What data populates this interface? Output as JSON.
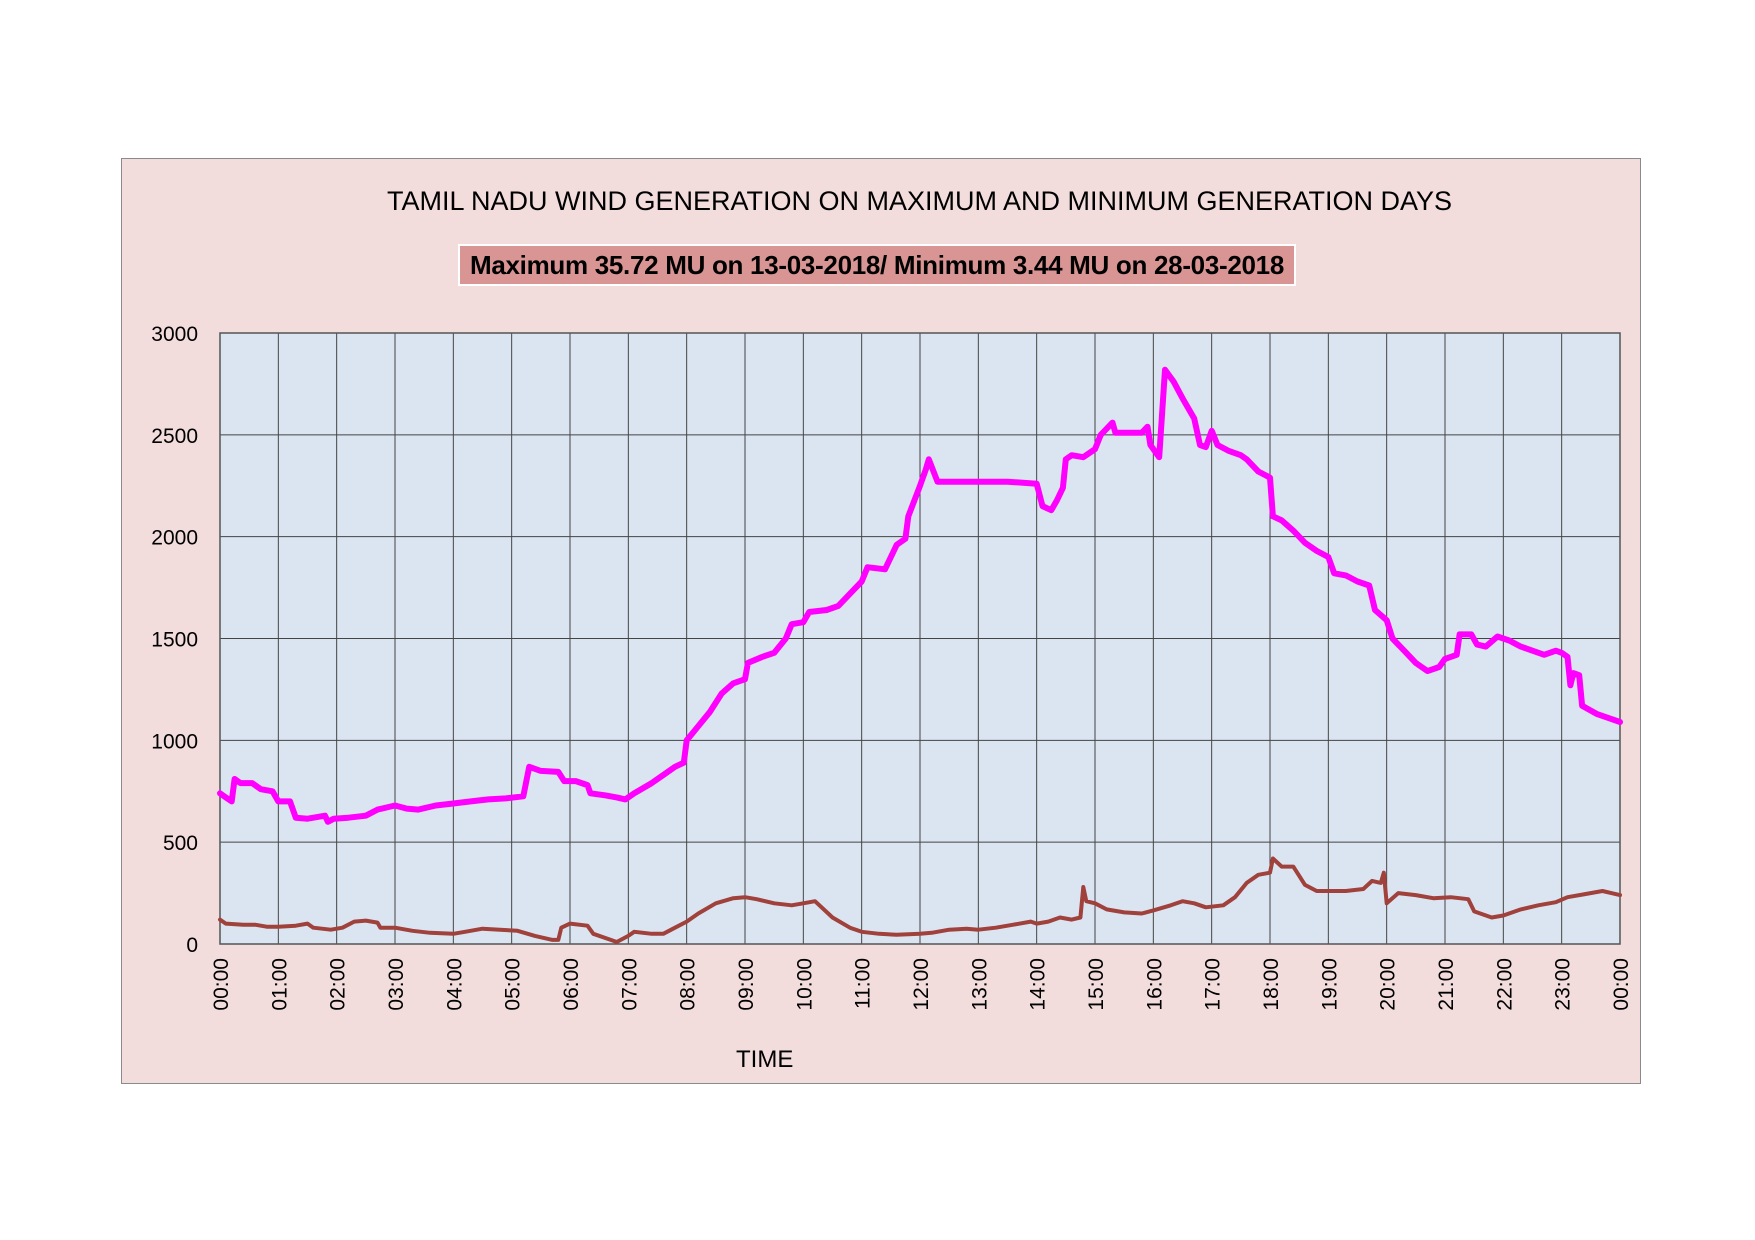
{
  "chart_data": {
    "type": "line",
    "title": "TAMIL NADU WIND GENERATION ON MAXIMUM AND MINIMUM GENERATION DAYS",
    "subtitle": "Maximum 35.72 MU on 13-03-2018/ Minimum 3.44 MU on 28-03-2018",
    "xlabel": "TIME",
    "ylabel": "",
    "ylim": [
      0,
      3000
    ],
    "yticks": [
      "0",
      "500",
      "1000",
      "1500",
      "2000",
      "2500",
      "3000"
    ],
    "x_ticks": [
      "00:00",
      "01:00",
      "02:00",
      "03:00",
      "04:00",
      "05:00",
      "06:00",
      "07:00",
      "08:00",
      "09:00",
      "10:00",
      "11:00",
      "12:00",
      "13:00",
      "14:00",
      "15:00",
      "16:00",
      "17:00",
      "18:00",
      "19:00",
      "20:00",
      "21:00",
      "22:00",
      "23:00",
      "00:00"
    ],
    "grid": true,
    "legend": "none",
    "series": [
      {
        "color": "#ff00ff",
        "points": [
          [
            0,
            740
          ],
          [
            0.1,
            720
          ],
          [
            0.2,
            700
          ],
          [
            0.25,
            810
          ],
          [
            0.35,
            790
          ],
          [
            0.55,
            790
          ],
          [
            0.7,
            760
          ],
          [
            0.9,
            750
          ],
          [
            1.0,
            700
          ],
          [
            1.2,
            700
          ],
          [
            1.3,
            620
          ],
          [
            1.5,
            615
          ],
          [
            1.7,
            625
          ],
          [
            1.8,
            630
          ],
          [
            1.85,
            600
          ],
          [
            1.95,
            615
          ],
          [
            2.2,
            620
          ],
          [
            2.5,
            630
          ],
          [
            2.7,
            660
          ],
          [
            3.0,
            680
          ],
          [
            3.2,
            665
          ],
          [
            3.4,
            660
          ],
          [
            3.7,
            680
          ],
          [
            4.0,
            690
          ],
          [
            4.3,
            700
          ],
          [
            4.6,
            710
          ],
          [
            4.9,
            715
          ],
          [
            5.2,
            725
          ],
          [
            5.3,
            870
          ],
          [
            5.5,
            850
          ],
          [
            5.8,
            845
          ],
          [
            5.9,
            800
          ],
          [
            6.1,
            800
          ],
          [
            6.3,
            780
          ],
          [
            6.35,
            740
          ],
          [
            6.6,
            730
          ],
          [
            6.8,
            720
          ],
          [
            6.95,
            710
          ],
          [
            7.1,
            740
          ],
          [
            7.4,
            790
          ],
          [
            7.6,
            830
          ],
          [
            7.8,
            870
          ],
          [
            7.95,
            890
          ],
          [
            8.0,
            1000
          ],
          [
            8.2,
            1070
          ],
          [
            8.4,
            1140
          ],
          [
            8.6,
            1230
          ],
          [
            8.8,
            1280
          ],
          [
            9.0,
            1300
          ],
          [
            9.05,
            1380
          ],
          [
            9.3,
            1410
          ],
          [
            9.5,
            1430
          ],
          [
            9.7,
            1500
          ],
          [
            9.8,
            1570
          ],
          [
            10.0,
            1580
          ],
          [
            10.1,
            1630
          ],
          [
            10.4,
            1640
          ],
          [
            10.6,
            1660
          ],
          [
            10.8,
            1720
          ],
          [
            11.0,
            1780
          ],
          [
            11.1,
            1850
          ],
          [
            11.4,
            1840
          ],
          [
            11.6,
            1960
          ],
          [
            11.75,
            1990
          ],
          [
            11.8,
            2100
          ],
          [
            12.0,
            2250
          ],
          [
            12.1,
            2330
          ],
          [
            12.15,
            2380
          ],
          [
            12.3,
            2270
          ],
          [
            13.5,
            2270
          ],
          [
            14.0,
            2260
          ],
          [
            14.1,
            2150
          ],
          [
            14.25,
            2130
          ],
          [
            14.35,
            2180
          ],
          [
            14.45,
            2240
          ],
          [
            14.5,
            2380
          ],
          [
            14.6,
            2400
          ],
          [
            14.8,
            2390
          ],
          [
            15.0,
            2430
          ],
          [
            15.1,
            2500
          ],
          [
            15.3,
            2560
          ],
          [
            15.35,
            2510
          ],
          [
            15.8,
            2510
          ],
          [
            15.9,
            2540
          ],
          [
            15.95,
            2450
          ],
          [
            16.1,
            2390
          ],
          [
            16.2,
            2820
          ],
          [
            16.35,
            2760
          ],
          [
            16.5,
            2680
          ],
          [
            16.7,
            2580
          ],
          [
            16.8,
            2450
          ],
          [
            16.9,
            2440
          ],
          [
            17.0,
            2520
          ],
          [
            17.1,
            2450
          ],
          [
            17.3,
            2420
          ],
          [
            17.5,
            2400
          ],
          [
            17.6,
            2380
          ],
          [
            17.8,
            2320
          ],
          [
            18.0,
            2290
          ],
          [
            18.05,
            2100
          ],
          [
            18.2,
            2080
          ],
          [
            18.4,
            2030
          ],
          [
            18.6,
            1970
          ],
          [
            18.8,
            1930
          ],
          [
            19.0,
            1900
          ],
          [
            19.1,
            1820
          ],
          [
            19.3,
            1810
          ],
          [
            19.5,
            1780
          ],
          [
            19.7,
            1760
          ],
          [
            19.8,
            1640
          ],
          [
            20.0,
            1590
          ],
          [
            20.1,
            1500
          ],
          [
            20.3,
            1440
          ],
          [
            20.5,
            1380
          ],
          [
            20.7,
            1340
          ],
          [
            20.9,
            1360
          ],
          [
            21.0,
            1400
          ],
          [
            21.2,
            1420
          ],
          [
            21.25,
            1520
          ],
          [
            21.45,
            1520
          ],
          [
            21.55,
            1470
          ],
          [
            21.7,
            1460
          ],
          [
            21.9,
            1510
          ],
          [
            22.1,
            1490
          ],
          [
            22.3,
            1460
          ],
          [
            22.5,
            1440
          ],
          [
            22.7,
            1420
          ],
          [
            22.9,
            1440
          ],
          [
            23.0,
            1430
          ],
          [
            23.1,
            1410
          ],
          [
            23.15,
            1270
          ],
          [
            23.2,
            1330
          ],
          [
            23.3,
            1320
          ],
          [
            23.35,
            1170
          ],
          [
            23.6,
            1130
          ],
          [
            23.8,
            1110
          ],
          [
            24.0,
            1090
          ]
        ]
      },
      {
        "color": "#a0413c",
        "points": [
          [
            0,
            120
          ],
          [
            0.1,
            100
          ],
          [
            0.4,
            95
          ],
          [
            0.6,
            95
          ],
          [
            0.8,
            85
          ],
          [
            1.0,
            85
          ],
          [
            1.3,
            90
          ],
          [
            1.5,
            100
          ],
          [
            1.6,
            80
          ],
          [
            1.9,
            70
          ],
          [
            2.1,
            80
          ],
          [
            2.3,
            110
          ],
          [
            2.5,
            115
          ],
          [
            2.7,
            105
          ],
          [
            2.75,
            80
          ],
          [
            3.0,
            80
          ],
          [
            3.3,
            65
          ],
          [
            3.6,
            55
          ],
          [
            4.0,
            50
          ],
          [
            4.2,
            60
          ],
          [
            4.5,
            75
          ],
          [
            4.8,
            70
          ],
          [
            5.1,
            65
          ],
          [
            5.4,
            40
          ],
          [
            5.7,
            20
          ],
          [
            5.8,
            20
          ],
          [
            5.85,
            80
          ],
          [
            6.0,
            100
          ],
          [
            6.3,
            90
          ],
          [
            6.4,
            50
          ],
          [
            6.7,
            20
          ],
          [
            6.8,
            10
          ],
          [
            7.0,
            40
          ],
          [
            7.1,
            60
          ],
          [
            7.4,
            50
          ],
          [
            7.6,
            50
          ],
          [
            7.8,
            80
          ],
          [
            8.0,
            110
          ],
          [
            8.2,
            150
          ],
          [
            8.5,
            200
          ],
          [
            8.8,
            225
          ],
          [
            9.0,
            230
          ],
          [
            9.2,
            220
          ],
          [
            9.5,
            200
          ],
          [
            9.8,
            190
          ],
          [
            10.0,
            200
          ],
          [
            10.2,
            210
          ],
          [
            10.5,
            130
          ],
          [
            10.8,
            80
          ],
          [
            11.0,
            60
          ],
          [
            11.3,
            50
          ],
          [
            11.6,
            45
          ],
          [
            12.0,
            50
          ],
          [
            12.2,
            55
          ],
          [
            12.5,
            70
          ],
          [
            12.8,
            75
          ],
          [
            13.0,
            70
          ],
          [
            13.3,
            80
          ],
          [
            13.6,
            95
          ],
          [
            13.9,
            110
          ],
          [
            14.0,
            100
          ],
          [
            14.2,
            110
          ],
          [
            14.4,
            130
          ],
          [
            14.6,
            120
          ],
          [
            14.75,
            130
          ],
          [
            14.8,
            280
          ],
          [
            14.85,
            210
          ],
          [
            15.0,
            200
          ],
          [
            15.2,
            170
          ],
          [
            15.5,
            155
          ],
          [
            15.8,
            150
          ],
          [
            16.0,
            165
          ],
          [
            16.3,
            190
          ],
          [
            16.5,
            210
          ],
          [
            16.7,
            200
          ],
          [
            16.9,
            180
          ],
          [
            17.2,
            190
          ],
          [
            17.4,
            230
          ],
          [
            17.6,
            300
          ],
          [
            17.8,
            340
          ],
          [
            18.0,
            350
          ],
          [
            18.05,
            420
          ],
          [
            18.2,
            380
          ],
          [
            18.4,
            380
          ],
          [
            18.6,
            290
          ],
          [
            18.8,
            260
          ],
          [
            19.0,
            260
          ],
          [
            19.3,
            260
          ],
          [
            19.6,
            270
          ],
          [
            19.75,
            310
          ],
          [
            19.9,
            300
          ],
          [
            19.95,
            350
          ],
          [
            20.0,
            200
          ],
          [
            20.2,
            250
          ],
          [
            20.5,
            240
          ],
          [
            20.8,
            225
          ],
          [
            21.1,
            230
          ],
          [
            21.4,
            220
          ],
          [
            21.5,
            160
          ],
          [
            21.8,
            130
          ],
          [
            22.0,
            140
          ],
          [
            22.3,
            170
          ],
          [
            22.6,
            190
          ],
          [
            22.9,
            205
          ],
          [
            23.1,
            230
          ],
          [
            23.4,
            245
          ],
          [
            23.7,
            260
          ],
          [
            23.85,
            250
          ],
          [
            24.0,
            240
          ]
        ]
      }
    ]
  }
}
